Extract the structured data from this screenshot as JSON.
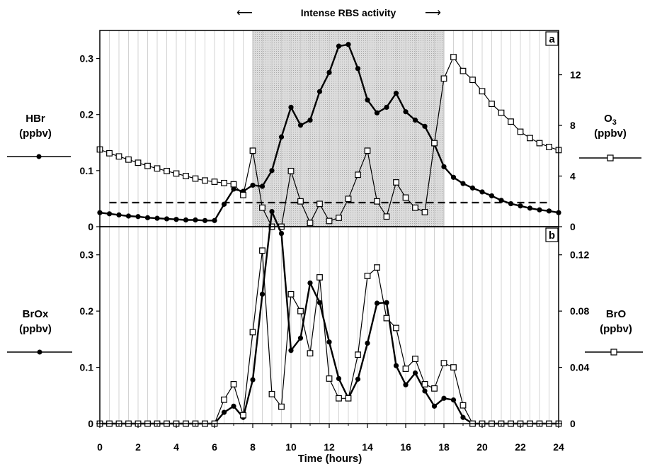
{
  "chart_data": {
    "header": "Intense RBS activity",
    "shaded_span": [
      8,
      18
    ],
    "xlabel": "Time (hours)",
    "xlim": [
      0,
      24
    ],
    "x_ticks": [
      0,
      2,
      4,
      6,
      8,
      10,
      12,
      14,
      16,
      18,
      20,
      22,
      24
    ],
    "panels": [
      {
        "id": "a",
        "type": "line",
        "left_axis": {
          "label": [
            "HBr",
            "(ppbv)"
          ],
          "ylim": [
            0,
            0.35
          ],
          "ticks": [
            0,
            0.1,
            0.2,
            0.3
          ]
        },
        "right_axis": {
          "label": [
            "O",
            "3",
            "(ppbv)"
          ],
          "ylim": [
            0,
            15.5
          ],
          "ticks": [
            0,
            4,
            8,
            12
          ]
        },
        "dashed_reference": 0.043,
        "series": [
          {
            "name": "HBr",
            "axis": "left",
            "marker": "filled-circle",
            "x": [
              0,
              0.5,
              1,
              1.5,
              2,
              2.5,
              3,
              3.5,
              4,
              4.5,
              5,
              5.5,
              6,
              6.5,
              7,
              7.5,
              8,
              8.5,
              9,
              9.5,
              10,
              10.5,
              11,
              11.5,
              12,
              12.5,
              13,
              13.5,
              14,
              14.5,
              15,
              15.5,
              16,
              16.5,
              17,
              17.5,
              18,
              18.5,
              19,
              19.5,
              20,
              20.5,
              21,
              21.5,
              22,
              22.5,
              23,
              23.5,
              24
            ],
            "values": [
              0.025,
              0.023,
              0.021,
              0.019,
              0.018,
              0.016,
              0.015,
              0.014,
              0.013,
              0.012,
              0.012,
              0.011,
              0.011,
              0.04,
              0.067,
              0.063,
              0.074,
              0.072,
              0.1,
              0.16,
              0.213,
              0.181,
              0.19,
              0.241,
              0.275,
              0.322,
              0.325,
              0.282,
              0.226,
              0.203,
              0.213,
              0.238,
              0.205,
              0.19,
              0.179,
              0.147,
              0.107,
              0.088,
              0.077,
              0.069,
              0.062,
              0.055,
              0.047,
              0.041,
              0.037,
              0.033,
              0.03,
              0.028,
              0.025
            ]
          },
          {
            "name": "O3",
            "axis": "right",
            "marker": "open-square",
            "x": [
              0,
              0.5,
              1,
              1.5,
              2,
              2.5,
              3,
              3.5,
              4,
              4.5,
              5,
              5.5,
              6,
              6.5,
              7,
              7.5,
              8,
              8.5,
              9,
              9.5,
              10,
              10.5,
              11,
              11.5,
              12,
              12.5,
              13,
              13.5,
              14,
              14.5,
              15,
              15.5,
              16,
              16.5,
              17,
              17.5,
              18,
              18.5,
              19,
              19.5,
              20,
              20.5,
              21,
              21.5,
              22,
              22.5,
              23,
              23.5,
              24
            ],
            "values": [
              6.1,
              5.8,
              5.55,
              5.3,
              5.05,
              4.8,
              4.6,
              4.4,
              4.2,
              4.0,
              3.8,
              3.65,
              3.55,
              3.45,
              3.35,
              2.5,
              6.0,
              1.5,
              0,
              0,
              4.4,
              2.0,
              0.3,
              1.8,
              0.45,
              0.7,
              2.2,
              4.1,
              6.0,
              2.0,
              0.8,
              3.5,
              2.3,
              1.5,
              1.15,
              6.6,
              11.7,
              13.4,
              12.3,
              11.6,
              10.7,
              9.7,
              9.0,
              8.3,
              7.5,
              7.0,
              6.6,
              6.3,
              6.05
            ]
          }
        ]
      },
      {
        "id": "b",
        "type": "line",
        "left_axis": {
          "label": [
            "BrOx",
            "(ppbv)"
          ],
          "ylim": [
            0,
            0.35
          ],
          "ticks": [
            0,
            0.1,
            0.2,
            0.3
          ]
        },
        "right_axis": {
          "label": [
            "BrO",
            "(ppbv)"
          ],
          "ylim": [
            0,
            0.14
          ],
          "ticks": [
            0,
            0.04,
            0.08,
            0.12
          ]
        },
        "series": [
          {
            "name": "BrOx",
            "axis": "left",
            "marker": "filled-circle",
            "x": [
              0,
              0.5,
              1,
              1.5,
              2,
              2.5,
              3,
              3.5,
              4,
              4.5,
              5,
              5.5,
              6,
              6.5,
              7,
              7.5,
              8,
              8.5,
              9,
              9.5,
              10,
              10.5,
              11,
              11.5,
              12,
              12.5,
              13,
              13.5,
              14,
              14.5,
              15,
              15.5,
              16,
              16.5,
              17,
              17.5,
              18,
              18.5,
              19,
              19.5,
              20,
              20.5,
              21,
              21.5,
              22,
              22.5,
              23,
              23.5,
              24
            ],
            "values": [
              0,
              0,
              0,
              0,
              0,
              0,
              0,
              0,
              0,
              0,
              0,
              0,
              0,
              0.02,
              0.031,
              0.011,
              0.078,
              0.23,
              0.377,
              0.338,
              0.13,
              0.152,
              0.25,
              0.215,
              0.145,
              0.08,
              0.045,
              0.079,
              0.143,
              0.214,
              0.215,
              0.103,
              0.069,
              0.09,
              0.058,
              0.031,
              0.045,
              0.042,
              0.011,
              0,
              0,
              0,
              0,
              0,
              0,
              0,
              0,
              0,
              0
            ]
          },
          {
            "name": "BrO",
            "axis": "right",
            "marker": "open-square",
            "x": [
              0,
              0.5,
              1,
              1.5,
              2,
              2.5,
              3,
              3.5,
              4,
              4.5,
              5,
              5.5,
              6,
              6.5,
              7,
              7.5,
              8,
              8.5,
              9,
              9.5,
              10,
              10.5,
              11,
              11.5,
              12,
              12.5,
              13,
              13.5,
              14,
              14.5,
              15,
              15.5,
              16,
              16.5,
              17,
              17.5,
              18,
              18.5,
              19,
              19.5,
              20,
              20.5,
              21,
              21.5,
              22,
              22.5,
              23,
              23.5,
              24
            ],
            "values": [
              0,
              0,
              0,
              0,
              0,
              0,
              0,
              0,
              0,
              0,
              0,
              0,
              0,
              0.017,
              0.028,
              0.006,
              0.065,
              0.123,
              0.021,
              0.012,
              0.092,
              0.08,
              0.05,
              0.104,
              0.032,
              0.018,
              0.018,
              0.049,
              0.105,
              0.111,
              0.075,
              0.068,
              0.039,
              0.046,
              0.028,
              0.025,
              0.043,
              0.04,
              0.013,
              0,
              0,
              0,
              0,
              0,
              0,
              0,
              0,
              0,
              0
            ]
          }
        ]
      }
    ]
  }
}
